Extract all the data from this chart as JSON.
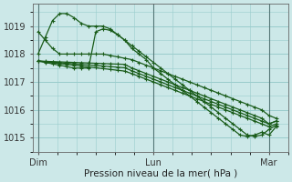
{
  "title": "Pression niveau de la mer( hPa )",
  "bg_color": "#cce8e8",
  "grid_color": "#99cccc",
  "line_color": "#1a5c1a",
  "ylim": [
    1014.5,
    1019.8
  ],
  "yticks": [
    1015,
    1016,
    1017,
    1018,
    1019
  ],
  "xtick_labels": [
    "Dim",
    "Lun",
    "Mar"
  ],
  "xtick_positions": [
    0,
    48,
    96
  ],
  "xlim": [
    -2,
    104
  ],
  "series": [
    [
      1018.0,
      1018.6,
      1019.2,
      1019.45,
      1019.45,
      1019.3,
      1019.1,
      1019.0,
      1019.0,
      1019.0,
      1018.9,
      1018.7,
      1018.5,
      1018.2,
      1018.0,
      1017.8,
      1017.5,
      1017.3,
      1017.1,
      1016.9,
      1016.7,
      1016.5,
      1016.3,
      1016.1,
      1015.9,
      1015.7,
      1015.5,
      1015.3,
      1015.1,
      1015.05,
      1015.1,
      1015.2,
      1015.1,
      1015.4
    ],
    [
      1017.75,
      1017.7,
      1017.65,
      1017.6,
      1017.55,
      1017.5,
      1017.5,
      1017.5,
      1018.8,
      1018.9,
      1018.85,
      1018.7,
      1018.5,
      1018.3,
      1018.1,
      1017.9,
      1017.7,
      1017.5,
      1017.3,
      1017.1,
      1016.9,
      1016.7,
      1016.5,
      1016.3,
      1016.1,
      1015.9,
      1015.7,
      1015.5,
      1015.3,
      1015.1,
      1015.05,
      1015.1,
      1015.3,
      1015.45
    ],
    [
      1017.75,
      1017.72,
      1017.69,
      1017.66,
      1017.63,
      1017.6,
      1017.57,
      1017.54,
      1017.51,
      1017.48,
      1017.45,
      1017.42,
      1017.39,
      1017.3,
      1017.2,
      1017.1,
      1017.0,
      1016.9,
      1016.8,
      1016.7,
      1016.6,
      1016.5,
      1016.4,
      1016.3,
      1016.2,
      1016.1,
      1016.0,
      1015.9,
      1015.8,
      1015.7,
      1015.6,
      1015.5,
      1015.4,
      1015.5
    ],
    [
      1017.75,
      1017.73,
      1017.71,
      1017.69,
      1017.67,
      1017.65,
      1017.63,
      1017.61,
      1017.59,
      1017.57,
      1017.55,
      1017.53,
      1017.51,
      1017.4,
      1017.3,
      1017.2,
      1017.1,
      1017.0,
      1016.9,
      1016.8,
      1016.7,
      1016.6,
      1016.5,
      1016.4,
      1016.3,
      1016.2,
      1016.1,
      1016.0,
      1015.9,
      1015.8,
      1015.7,
      1015.6,
      1015.5,
      1015.6
    ],
    [
      1017.75,
      1017.74,
      1017.73,
      1017.72,
      1017.71,
      1017.7,
      1017.69,
      1017.68,
      1017.67,
      1017.66,
      1017.65,
      1017.64,
      1017.63,
      1017.5,
      1017.4,
      1017.3,
      1017.2,
      1017.1,
      1017.0,
      1016.9,
      1016.8,
      1016.7,
      1016.6,
      1016.5,
      1016.4,
      1016.3,
      1016.2,
      1016.1,
      1016.0,
      1015.9,
      1015.8,
      1015.7,
      1015.5,
      1015.6
    ],
    [
      1018.8,
      1018.5,
      1018.2,
      1018.0,
      1018.0,
      1018.0,
      1018.0,
      1018.0,
      1018.0,
      1018.0,
      1017.95,
      1017.9,
      1017.85,
      1017.8,
      1017.7,
      1017.6,
      1017.5,
      1017.4,
      1017.3,
      1017.2,
      1017.1,
      1017.0,
      1016.9,
      1016.8,
      1016.7,
      1016.6,
      1016.5,
      1016.4,
      1016.3,
      1016.2,
      1016.1,
      1016.0,
      1015.8,
      1015.7
    ]
  ]
}
